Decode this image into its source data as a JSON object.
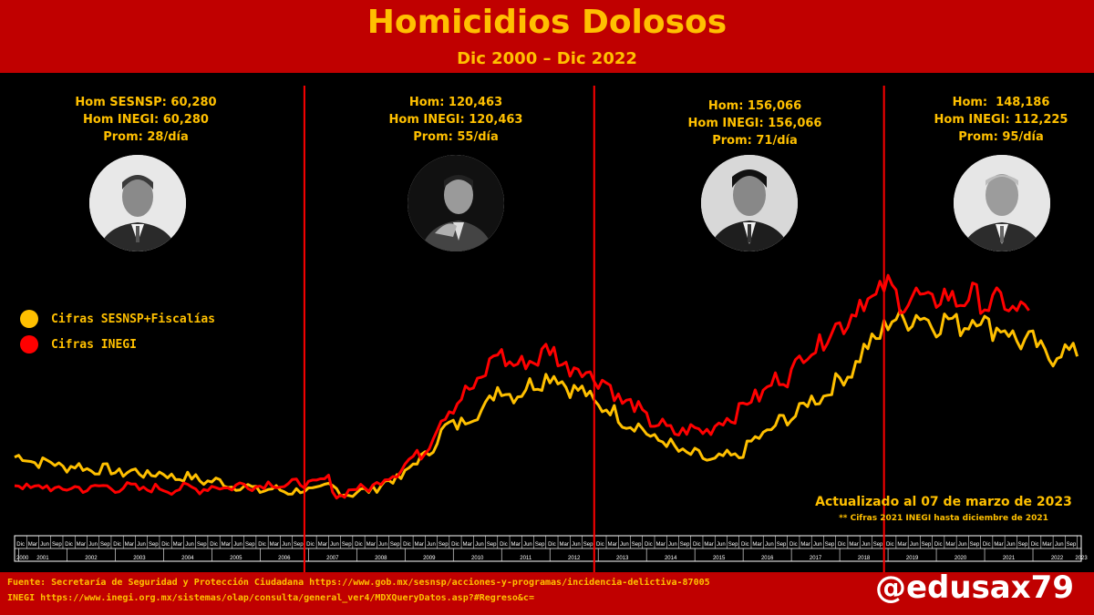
{
  "title": "Homicidios Dolosos",
  "subtitle": "Dic 2000 – Dic 2022",
  "panels": [
    {
      "line1": "Hom SESNSP: 60,280",
      "line2": "Hom INEGI: 60,280",
      "line3": "Prom: 28/día"
    },
    {
      "line1": "Hom: 120,463",
      "line2": "Hom INEGI: 120,463",
      "line3": "Prom: 55/día"
    },
    {
      "line1": "Hom: 156,066",
      "line2": "Hom INEGI: 156,066",
      "line3": "Prom: 71/día"
    },
    {
      "line1": "Hom:  148,186",
      "line2": "Hom INEGI: 112,225",
      "line3": "Prom: 95/día"
    }
  ],
  "legend": [
    {
      "label": "Cifras SESNSP+Fiscalías",
      "color": "#ffc000"
    },
    {
      "label": "Cifras INEGI",
      "color": "#ff0000"
    }
  ],
  "update_text": "Actualizado al 07 de marzo de 2023",
  "note": "** Cifras 2021 INEGI hasta diciembre de 2021",
  "source_line1": "Fuente: Secretaría de Seguridad y Protección Ciudadana https://www.gob.mx/sesnsp/acciones-y-programas/incidencia-delictiva-87005",
  "source_line2": "INEGI https://www.inegi.org.mx/sistemas/olap/consulta/general_ver4/MDXQueryDatos.asp?#Regreso&c=",
  "handle": "@edusax79",
  "chart_data": {
    "type": "line",
    "x_unit": "month",
    "x_start": "2000-12",
    "x_end": "2023-01",
    "period_dividers": [
      "2006-12",
      "2012-12",
      "2018-12"
    ],
    "month_labels": [
      "Mar",
      "Jun",
      "Sep",
      "Dic"
    ],
    "year_labels": [
      "2000",
      "2001",
      "2002",
      "2003",
      "2004",
      "2005",
      "2006",
      "2007",
      "2008",
      "2009",
      "2010",
      "2011",
      "2012",
      "2013",
      "2014",
      "2015",
      "2016",
      "2017",
      "2018",
      "2019",
      "2020",
      "2021",
      "2022",
      "2023"
    ],
    "colors": {
      "sesnsp": "#ffc000",
      "inegi": "#ff0000",
      "divider": "#ff0000"
    },
    "anchor_note": "Approximate monthly homicides estimated from line positions (no numeric axis shown). Knots: [month_index, value]; month_index 0 = Dec 2000.",
    "series": [
      {
        "name": "Cifras SESNSP+Fiscalías",
        "color": "#ffc000",
        "knots": [
          [
            0,
            1180
          ],
          [
            12,
            1100
          ],
          [
            24,
            1050
          ],
          [
            36,
            1020
          ],
          [
            48,
            960
          ],
          [
            60,
            880
          ],
          [
            72,
            860
          ],
          [
            78,
            900
          ],
          [
            84,
            830
          ],
          [
            90,
            900
          ],
          [
            96,
            1000
          ],
          [
            102,
            1200
          ],
          [
            108,
            1480
          ],
          [
            114,
            1550
          ],
          [
            120,
            1800
          ],
          [
            126,
            1780
          ],
          [
            132,
            1950
          ],
          [
            138,
            1850
          ],
          [
            144,
            1700
          ],
          [
            150,
            1560
          ],
          [
            156,
            1430
          ],
          [
            162,
            1300
          ],
          [
            168,
            1200
          ],
          [
            174,
            1150
          ],
          [
            180,
            1200
          ],
          [
            186,
            1400
          ],
          [
            192,
            1540
          ],
          [
            198,
            1700
          ],
          [
            204,
            1850
          ],
          [
            210,
            2100
          ],
          [
            216,
            2400
          ],
          [
            222,
            2500
          ],
          [
            228,
            2450
          ],
          [
            234,
            2430
          ],
          [
            240,
            2470
          ],
          [
            246,
            2350
          ],
          [
            252,
            2250
          ],
          [
            258,
            2120
          ],
          [
            264,
            2200
          ]
        ]
      },
      {
        "name": "Cifras INEGI",
        "color": "#ff0000",
        "knots": [
          [
            0,
            910
          ],
          [
            12,
            880
          ],
          [
            24,
            900
          ],
          [
            36,
            880
          ],
          [
            48,
            890
          ],
          [
            60,
            920
          ],
          [
            72,
            930
          ],
          [
            78,
            960
          ],
          [
            80,
            820
          ],
          [
            84,
            870
          ],
          [
            90,
            920
          ],
          [
            96,
            1080
          ],
          [
            102,
            1250
          ],
          [
            108,
            1650
          ],
          [
            114,
            1820
          ],
          [
            120,
            2150
          ],
          [
            126,
            2020
          ],
          [
            132,
            2180
          ],
          [
            138,
            2030
          ],
          [
            144,
            1950
          ],
          [
            150,
            1750
          ],
          [
            156,
            1580
          ],
          [
            162,
            1430
          ],
          [
            168,
            1420
          ],
          [
            174,
            1460
          ],
          [
            180,
            1620
          ],
          [
            186,
            1800
          ],
          [
            192,
            1950
          ],
          [
            198,
            2200
          ],
          [
            204,
            2380
          ],
          [
            210,
            2600
          ],
          [
            216,
            2750
          ],
          [
            222,
            2650
          ],
          [
            228,
            2650
          ],
          [
            234,
            2670
          ],
          [
            240,
            2650
          ],
          [
            246,
            2600
          ],
          [
            252,
            2550
          ]
        ]
      }
    ]
  }
}
